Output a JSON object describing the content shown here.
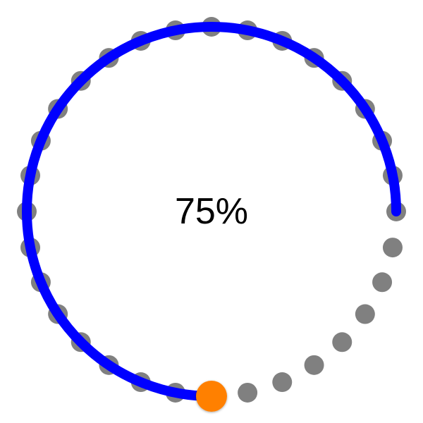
{
  "progress": {
    "percent_text": "75%",
    "value": 0.75,
    "dot_count": 32,
    "colors": {
      "track_dots": "#808080",
      "progress_arc": "#0000ff",
      "handle": "#ff8000",
      "label": "#000000",
      "background": "#ffffff"
    },
    "handle_icon": "drag-handle-icon"
  }
}
